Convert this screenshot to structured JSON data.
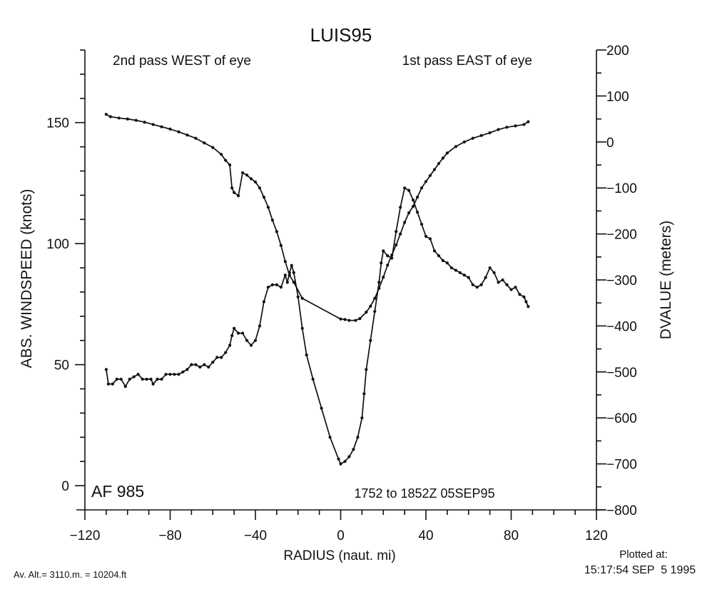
{
  "chart_data": {
    "type": "line",
    "title": "LUIS95",
    "xlabel": "RADIUS (naut. mi)",
    "ylabel_left": "ABS. WINDSPEED (knots)",
    "ylabel_right": "DVALUE (meters)",
    "xlim": [
      -120,
      120
    ],
    "ylim_left": [
      -10,
      180
    ],
    "ylim_right": [
      -800,
      200
    ],
    "xticks": [
      -120,
      -80,
      -40,
      0,
      40,
      80,
      120
    ],
    "yticks_left": [
      0,
      50,
      100,
      150
    ],
    "yticks_right": [
      -800,
      -700,
      -600,
      -500,
      -400,
      -300,
      -200,
      -100,
      0,
      100,
      200
    ],
    "grid": false,
    "annotations": {
      "west_pass": "2nd pass WEST of eye",
      "east_pass": "1st pass EAST of eye",
      "flight": "AF 985",
      "time_range": "1752 to 1852Z 05SEP95"
    },
    "series": [
      {
        "axis": "left",
        "color": "#111111",
        "points": [
          [
            -110,
            48
          ],
          [
            -109,
            42
          ],
          [
            -107,
            42
          ],
          [
            -105,
            44
          ],
          [
            -103,
            44
          ],
          [
            -101,
            41
          ],
          [
            -99,
            44
          ],
          [
            -97,
            45
          ],
          [
            -95,
            46
          ],
          [
            -93,
            44
          ],
          [
            -91,
            44
          ],
          [
            -89,
            44
          ],
          [
            -88,
            42
          ],
          [
            -86,
            44
          ],
          [
            -84,
            44
          ],
          [
            -82,
            46
          ],
          [
            -80,
            46
          ],
          [
            -78,
            46
          ],
          [
            -76,
            46
          ],
          [
            -74,
            47
          ],
          [
            -72,
            48
          ],
          [
            -70,
            50
          ],
          [
            -68,
            50
          ],
          [
            -66,
            49
          ],
          [
            -64,
            50
          ],
          [
            -62,
            49
          ],
          [
            -60,
            51
          ],
          [
            -58,
            53
          ],
          [
            -56,
            53
          ],
          [
            -54,
            55
          ],
          [
            -52,
            58
          ],
          [
            -51,
            62
          ],
          [
            -50,
            65
          ],
          [
            -48,
            63
          ],
          [
            -46,
            63
          ],
          [
            -44,
            60
          ],
          [
            -42,
            58
          ],
          [
            -40,
            60
          ],
          [
            -38,
            66
          ],
          [
            -36,
            76
          ],
          [
            -34,
            82
          ],
          [
            -32,
            83
          ],
          [
            -30,
            83
          ],
          [
            -28,
            82
          ],
          [
            -26,
            87
          ],
          [
            -25,
            84
          ],
          [
            -24,
            88
          ],
          [
            -23,
            91
          ],
          [
            -22,
            88
          ],
          [
            -20,
            78
          ],
          [
            -18,
            65
          ],
          [
            -16,
            54
          ],
          [
            -13,
            44
          ],
          [
            -9,
            32
          ],
          [
            -5,
            20
          ],
          [
            -1,
            11
          ],
          [
            0,
            9
          ],
          [
            2,
            10
          ],
          [
            4,
            12
          ],
          [
            6,
            15
          ],
          [
            8,
            20
          ],
          [
            10,
            28
          ],
          [
            11,
            38
          ],
          [
            12,
            48
          ],
          [
            14,
            60
          ],
          [
            16,
            72
          ],
          [
            18,
            84
          ],
          [
            19,
            92
          ],
          [
            20,
            97
          ],
          [
            22,
            95
          ],
          [
            24,
            94
          ],
          [
            26,
            105
          ],
          [
            28,
            115
          ],
          [
            30,
            123
          ],
          [
            32,
            122
          ],
          [
            34,
            118
          ],
          [
            36,
            113
          ],
          [
            38,
            108
          ],
          [
            40,
            103
          ],
          [
            42,
            102
          ],
          [
            44,
            97
          ],
          [
            46,
            95
          ],
          [
            48,
            93
          ],
          [
            50,
            92
          ],
          [
            52,
            90
          ],
          [
            54,
            89
          ],
          [
            56,
            88
          ],
          [
            58,
            87
          ],
          [
            60,
            86
          ],
          [
            62,
            83
          ],
          [
            64,
            82
          ],
          [
            66,
            83
          ],
          [
            68,
            86
          ],
          [
            70,
            90
          ],
          [
            72,
            88
          ],
          [
            74,
            84
          ],
          [
            76,
            85
          ],
          [
            78,
            83
          ],
          [
            80,
            81
          ],
          [
            82,
            82
          ],
          [
            84,
            79
          ],
          [
            86,
            78
          ],
          [
            87,
            76
          ],
          [
            88,
            74
          ]
        ]
      },
      {
        "axis": "right",
        "color": "#111111",
        "points": [
          [
            -110,
            60
          ],
          [
            -108,
            55
          ],
          [
            -104,
            52
          ],
          [
            -100,
            50
          ],
          [
            -96,
            47
          ],
          [
            -92,
            43
          ],
          [
            -88,
            38
          ],
          [
            -84,
            33
          ],
          [
            -80,
            28
          ],
          [
            -76,
            22
          ],
          [
            -72,
            15
          ],
          [
            -68,
            8
          ],
          [
            -64,
            -2
          ],
          [
            -60,
            -12
          ],
          [
            -56,
            -27
          ],
          [
            -54,
            -40
          ],
          [
            -52,
            -50
          ],
          [
            -51,
            -100
          ],
          [
            -50,
            -110
          ],
          [
            -48,
            -117
          ],
          [
            -46,
            -67
          ],
          [
            -44,
            -72
          ],
          [
            -42,
            -80
          ],
          [
            -40,
            -87
          ],
          [
            -38,
            -100
          ],
          [
            -36,
            -120
          ],
          [
            -34,
            -142
          ],
          [
            -32,
            -170
          ],
          [
            -30,
            -195
          ],
          [
            -28,
            -225
          ],
          [
            -26,
            -260
          ],
          [
            -24,
            -290
          ],
          [
            -22,
            -305
          ],
          [
            -18,
            -340
          ],
          [
            0,
            -385
          ],
          [
            2,
            -386
          ],
          [
            4,
            -388
          ],
          [
            7,
            -388
          ],
          [
            9,
            -384
          ],
          [
            12,
            -370
          ],
          [
            14,
            -357
          ],
          [
            16,
            -340
          ],
          [
            18,
            -318
          ],
          [
            20,
            -294
          ],
          [
            22,
            -268
          ],
          [
            24,
            -246
          ],
          [
            26,
            -224
          ],
          [
            28,
            -200
          ],
          [
            30,
            -175
          ],
          [
            32,
            -154
          ],
          [
            34,
            -140
          ],
          [
            36,
            -120
          ],
          [
            38,
            -100
          ],
          [
            40,
            -86
          ],
          [
            42,
            -73
          ],
          [
            44,
            -60
          ],
          [
            46,
            -47
          ],
          [
            48,
            -35
          ],
          [
            50,
            -24
          ],
          [
            54,
            -10
          ],
          [
            58,
            0
          ],
          [
            62,
            8
          ],
          [
            66,
            14
          ],
          [
            70,
            20
          ],
          [
            74,
            27
          ],
          [
            78,
            32
          ],
          [
            82,
            35
          ],
          [
            86,
            38
          ],
          [
            88,
            44
          ]
        ]
      }
    ]
  },
  "footer": {
    "altitude": "Av. Alt.= 3110.m. = 10204.ft",
    "plotted_label": "Plotted at:",
    "plotted_time": "15:17:54 SEP  5 1995"
  }
}
